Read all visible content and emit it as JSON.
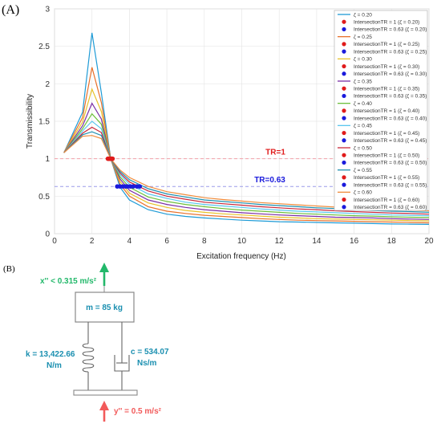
{
  "panel_labels": {
    "a": "(A)",
    "b": "(B)"
  },
  "chart_data": {
    "type": "line",
    "title": "",
    "xlabel": "Excitation frequency (Hz)",
    "ylabel": "Transmissibility",
    "xlim": [
      0,
      20
    ],
    "ylim": [
      0,
      3
    ],
    "xticks": [
      0,
      2,
      4,
      6,
      8,
      10,
      12,
      14,
      16,
      18,
      20
    ],
    "yticks": [
      0,
      0.5,
      1,
      1.5,
      2,
      2.5,
      3
    ],
    "grid": true,
    "legend_position": "right",
    "x": [
      0.5,
      1.5,
      2,
      2.5,
      3,
      3.5,
      4,
      5,
      6,
      7,
      8,
      9,
      10,
      11,
      12,
      13,
      14,
      15,
      16,
      17,
      18,
      19,
      20
    ],
    "series": [
      {
        "name": "ζ = 0.20",
        "color": "#1f9bd6",
        "values": [
          1.08,
          1.62,
          2.68,
          1.88,
          1.0,
          0.62,
          0.45,
          0.32,
          0.26,
          0.23,
          0.21,
          0.195,
          0.18,
          0.17,
          0.16,
          0.155,
          0.15,
          0.145,
          0.14,
          0.135,
          0.13,
          0.127,
          0.124
        ]
      },
      {
        "name": "ζ = 0.25",
        "color": "#e8702a",
        "values": [
          1.08,
          1.55,
          2.22,
          1.75,
          1.0,
          0.66,
          0.5,
          0.36,
          0.3,
          0.27,
          0.245,
          0.23,
          0.215,
          0.2,
          0.19,
          0.18,
          0.175,
          0.17,
          0.165,
          0.16,
          0.155,
          0.15,
          0.145
        ]
      },
      {
        "name": "ζ = 0.30",
        "color": "#e8c22a",
        "values": [
          1.08,
          1.49,
          1.93,
          1.63,
          1.0,
          0.7,
          0.54,
          0.41,
          0.35,
          0.31,
          0.285,
          0.265,
          0.25,
          0.235,
          0.22,
          0.21,
          0.2,
          0.195,
          0.19,
          0.185,
          0.18,
          0.175,
          0.17
        ]
      },
      {
        "name": "ζ = 0.35",
        "color": "#7b2fa6",
        "values": [
          1.08,
          1.44,
          1.74,
          1.53,
          1.0,
          0.73,
          0.58,
          0.45,
          0.39,
          0.35,
          0.32,
          0.3,
          0.28,
          0.265,
          0.25,
          0.24,
          0.23,
          0.22,
          0.215,
          0.21,
          0.2,
          0.195,
          0.19
        ]
      },
      {
        "name": "ζ = 0.40",
        "color": "#6cbf3a",
        "values": [
          1.08,
          1.4,
          1.6,
          1.46,
          1.0,
          0.76,
          0.62,
          0.49,
          0.43,
          0.39,
          0.36,
          0.335,
          0.315,
          0.3,
          0.285,
          0.27,
          0.26,
          0.25,
          0.24,
          0.235,
          0.225,
          0.22,
          0.215
        ]
      },
      {
        "name": "ζ = 0.45",
        "color": "#59c6ee",
        "values": [
          1.08,
          1.37,
          1.5,
          1.4,
          1.0,
          0.79,
          0.66,
          0.53,
          0.47,
          0.42,
          0.39,
          0.37,
          0.35,
          0.33,
          0.315,
          0.3,
          0.29,
          0.28,
          0.27,
          0.26,
          0.25,
          0.245,
          0.24
        ]
      },
      {
        "name": "ζ = 0.50",
        "color": "#c8283a",
        "values": [
          1.08,
          1.34,
          1.42,
          1.35,
          1.0,
          0.81,
          0.69,
          0.57,
          0.5,
          0.46,
          0.42,
          0.4,
          0.38,
          0.36,
          0.345,
          0.33,
          0.32,
          0.305,
          0.295,
          0.285,
          0.275,
          0.27,
          0.26
        ]
      },
      {
        "name": "ζ = 0.55",
        "color": "#1e8fb0",
        "values": [
          1.08,
          1.32,
          1.36,
          1.31,
          1.0,
          0.83,
          0.72,
          0.6,
          0.53,
          0.49,
          0.45,
          0.43,
          0.41,
          0.39,
          0.375,
          0.36,
          0.345,
          0.335,
          0.32,
          0.31,
          0.3,
          0.295,
          0.285
        ]
      },
      {
        "name": "ζ = 0.60",
        "color": "#f08c3c",
        "values": [
          1.08,
          1.3,
          1.31,
          1.27,
          1.0,
          0.85,
          0.75,
          0.63,
          0.56,
          0.52,
          0.48,
          0.455,
          0.435,
          0.415,
          0.4,
          0.385,
          0.37,
          0.355,
          0.345,
          0.335,
          0.325,
          0.315,
          0.305
        ]
      }
    ],
    "intersection_labels": {
      "tr1": "IntersectionTR = 1",
      "tr063": "IntersectionTR = 0.63"
    },
    "intersections_tr1": [
      2.85,
      2.9,
      2.95,
      3.0,
      3.05,
      3.1,
      2.9,
      3.0,
      3.05
    ],
    "intersections_tr063": [
      3.35,
      3.5,
      3.65,
      3.8,
      3.9,
      4.05,
      4.2,
      4.4,
      4.55
    ],
    "reference_lines": [
      {
        "label": "TR=1",
        "y": 1,
        "color": "#f2a0a8",
        "label_color": "#e01b1b",
        "label_x": 11.8
      },
      {
        "label": "TR=0.63",
        "y": 0.63,
        "color": "#9c9ce8",
        "label_color": "#1a1adc",
        "label_x": 11.5
      }
    ]
  },
  "diagram": {
    "top_accel": "x'' < 0.315 m/s²",
    "mass": "m = 85 kg",
    "spring_label_1": "k = 13,422.66",
    "spring_label_2": "N/m",
    "damper_label_1": "c = 534.07",
    "damper_label_2": "Ns/m",
    "bottom_accel": "y'' = 0.5 m/s²",
    "colors": {
      "green": "#22b86a",
      "teal": "#1a8fb0",
      "red": "#f25a5a"
    }
  }
}
